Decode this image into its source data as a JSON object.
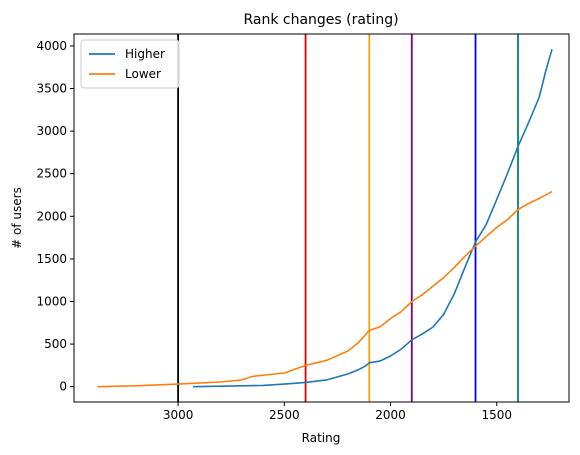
{
  "chart_data": {
    "type": "line",
    "title": "Rank changes (rating)",
    "xlabel": "Rating",
    "ylabel": "# of users",
    "x_inverted": true,
    "xlim": [
      3490,
      1160
    ],
    "ylim": [
      -180,
      4140
    ],
    "xticks": [
      3000,
      2500,
      2000,
      1500
    ],
    "yticks": [
      0,
      500,
      1000,
      1500,
      2000,
      2500,
      3000,
      3500,
      4000
    ],
    "grid": false,
    "legend_position": "upper-left",
    "vertical_lines": [
      {
        "x": 3000,
        "color": "#000000"
      },
      {
        "x": 2400,
        "color": "#e00000"
      },
      {
        "x": 2100,
        "color": "#f0a800"
      },
      {
        "x": 1900,
        "color": "#800080"
      },
      {
        "x": 1600,
        "color": "#0000ff"
      },
      {
        "x": 1400,
        "color": "#008080"
      }
    ],
    "series": [
      {
        "name": "Higher",
        "color": "#1f77b4",
        "points": [
          [
            2930,
            0
          ],
          [
            2800,
            5
          ],
          [
            2600,
            15
          ],
          [
            2500,
            30
          ],
          [
            2400,
            50
          ],
          [
            2300,
            80
          ],
          [
            2200,
            150
          ],
          [
            2150,
            200
          ],
          [
            2120,
            240
          ],
          [
            2100,
            280
          ],
          [
            2050,
            300
          ],
          [
            2000,
            360
          ],
          [
            1950,
            440
          ],
          [
            1900,
            550
          ],
          [
            1850,
            620
          ],
          [
            1800,
            700
          ],
          [
            1750,
            850
          ],
          [
            1700,
            1090
          ],
          [
            1650,
            1400
          ],
          [
            1600,
            1700
          ],
          [
            1550,
            1900
          ],
          [
            1500,
            2200
          ],
          [
            1450,
            2500
          ],
          [
            1400,
            2820
          ],
          [
            1350,
            3100
          ],
          [
            1300,
            3400
          ],
          [
            1270,
            3700
          ],
          [
            1240,
            3960
          ]
        ]
      },
      {
        "name": "Lower",
        "color": "#ff7f0e",
        "points": [
          [
            3380,
            0
          ],
          [
            3200,
            10
          ],
          [
            3000,
            30
          ],
          [
            2800,
            55
          ],
          [
            2700,
            80
          ],
          [
            2650,
            120
          ],
          [
            2500,
            160
          ],
          [
            2400,
            250
          ],
          [
            2300,
            310
          ],
          [
            2200,
            420
          ],
          [
            2150,
            520
          ],
          [
            2100,
            660
          ],
          [
            2050,
            700
          ],
          [
            2000,
            800
          ],
          [
            1950,
            880
          ],
          [
            1900,
            1000
          ],
          [
            1850,
            1080
          ],
          [
            1800,
            1180
          ],
          [
            1750,
            1280
          ],
          [
            1700,
            1400
          ],
          [
            1650,
            1530
          ],
          [
            1600,
            1650
          ],
          [
            1550,
            1760
          ],
          [
            1500,
            1870
          ],
          [
            1450,
            1960
          ],
          [
            1400,
            2080
          ],
          [
            1350,
            2150
          ],
          [
            1300,
            2210
          ],
          [
            1240,
            2290
          ]
        ]
      }
    ]
  }
}
